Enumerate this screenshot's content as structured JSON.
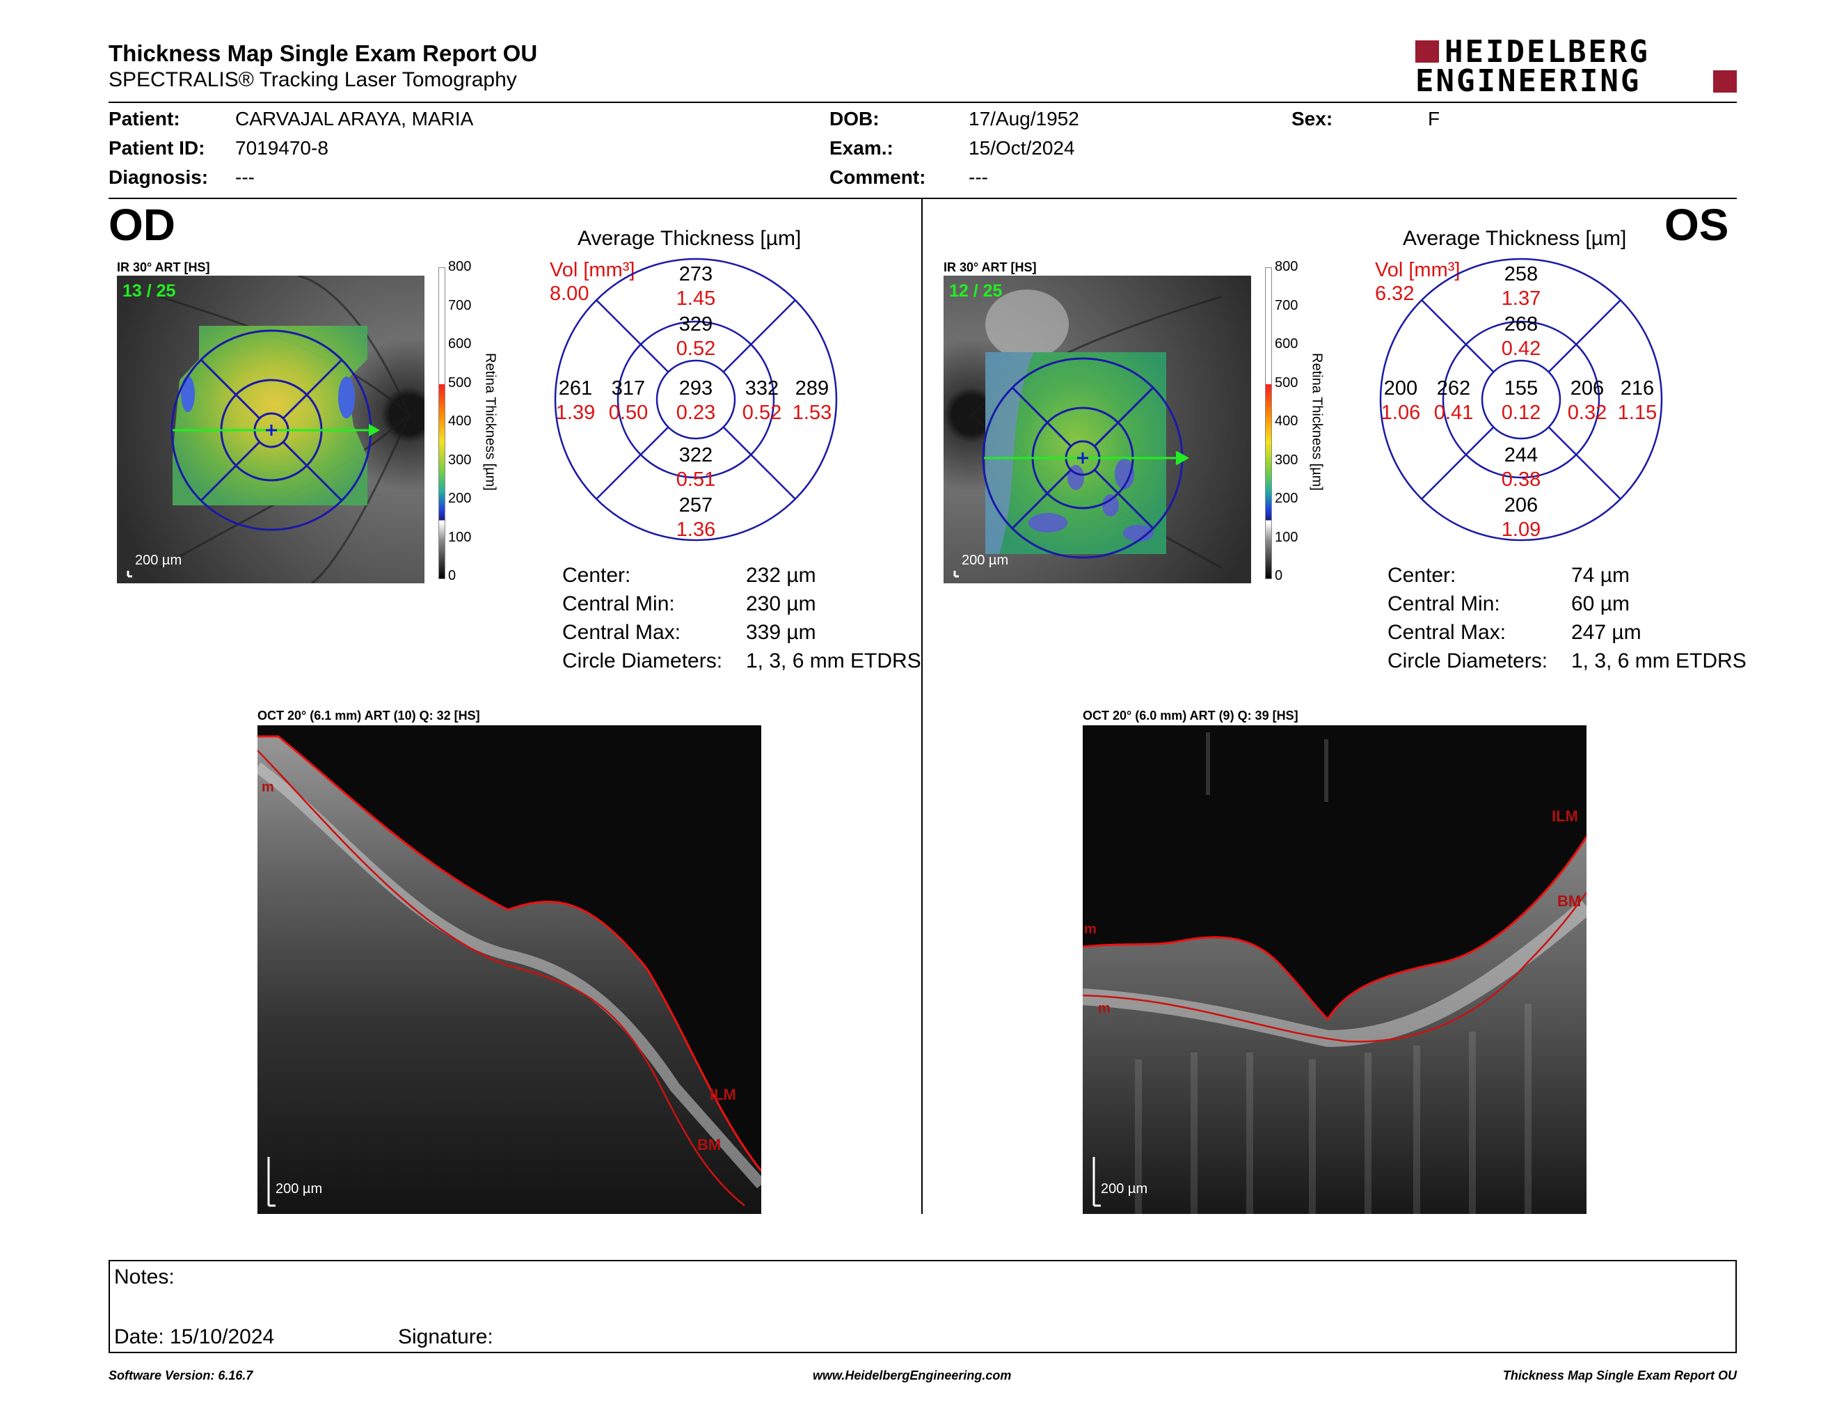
{
  "header": {
    "title": "Thickness Map Single Exam Report OU",
    "subtitle": "SPECTRALIS® Tracking Laser Tomography",
    "logo_line1": "HEIDELBERG",
    "logo_line2": "ENGINEERING"
  },
  "patient": {
    "patient_label": "Patient:",
    "patient_value": "CARVAJAL ARAYA, MARIA",
    "id_label": "Patient ID:",
    "id_value": "7019470-8",
    "diag_label": "Diagnosis:",
    "diag_value": "---",
    "dob_label": "DOB:",
    "dob_value": "17/Aug/1952",
    "exam_label": "Exam.:",
    "exam_value": "15/Oct/2024",
    "comment_label": "Comment:",
    "comment_value": "---",
    "sex_label": "Sex:",
    "sex_value": "F"
  },
  "scale": {
    "ticks": [
      "800",
      "700",
      "600",
      "500",
      "400",
      "300",
      "200",
      "100",
      "0"
    ],
    "axis_label": "Retina Thickness [µm]"
  },
  "od": {
    "eye": "OD",
    "ir_title": "IR 30° ART [HS]",
    "frame": "13 / 25",
    "scale_bar": "200 µm",
    "avg_title": "Average Thickness [µm]",
    "vol_label": "Vol [mm³]",
    "vol_value": "8.00",
    "etdrs": {
      "center": {
        "t": "293",
        "v": "0.23"
      },
      "inner_top": {
        "t": "329",
        "v": "0.52"
      },
      "inner_bottom": {
        "t": "322",
        "v": "0.51"
      },
      "inner_left": {
        "t": "317",
        "v": "0.50"
      },
      "inner_right": {
        "t": "332",
        "v": "0.52"
      },
      "outer_top": {
        "t": "273",
        "v": "1.45"
      },
      "outer_bottom": {
        "t": "257",
        "v": "1.36"
      },
      "outer_left": {
        "t": "261",
        "v": "1.39"
      },
      "outer_right": {
        "t": "289",
        "v": "1.53"
      }
    },
    "stats": {
      "center_label": "Center:",
      "center_value": "232 µm",
      "min_label": "Central Min:",
      "min_value": "230 µm",
      "max_label": "Central Max:",
      "max_value": "339 µm",
      "diam_label": "Circle Diameters:",
      "diam_value": "1, 3, 6 mm ETDRS"
    },
    "oct_title": "OCT 20° (6.1 mm) ART (10) Q: 32 [HS]",
    "oct_scale_bar": "200 µm",
    "layer_ilm": "ILM",
    "layer_bm": "BM",
    "layer_m": "m"
  },
  "os": {
    "eye": "OS",
    "ir_title": "IR 30° ART [HS]",
    "frame": "12 / 25",
    "scale_bar": "200 µm",
    "avg_title": "Average Thickness [µm]",
    "vol_label": "Vol [mm³]",
    "vol_value": "6.32",
    "etdrs": {
      "center": {
        "t": "155",
        "v": "0.12"
      },
      "inner_top": {
        "t": "268",
        "v": "0.42"
      },
      "inner_bottom": {
        "t": "244",
        "v": "0.38"
      },
      "inner_left": {
        "t": "262",
        "v": "0.41"
      },
      "inner_right": {
        "t": "206",
        "v": "0.32"
      },
      "outer_top": {
        "t": "258",
        "v": "1.37"
      },
      "outer_bottom": {
        "t": "206",
        "v": "1.09"
      },
      "outer_left": {
        "t": "200",
        "v": "1.06"
      },
      "outer_right": {
        "t": "216",
        "v": "1.15"
      }
    },
    "stats": {
      "center_label": "Center:",
      "center_value": "74 µm",
      "min_label": "Central Min:",
      "min_value": "60 µm",
      "max_label": "Central Max:",
      "max_value": "247 µm",
      "diam_label": "Circle Diameters:",
      "diam_value": "1, 3, 6 mm ETDRS"
    },
    "oct_title": "OCT 20° (6.0 mm) ART (9) Q: 39 [HS]",
    "oct_scale_bar": "200 µm",
    "layer_ilm": "ILM",
    "layer_bm": "BM",
    "layer_m1": "m",
    "layer_m2": "m"
  },
  "notes": {
    "notes_label": "Notes:",
    "date_label": "Date: 15/10/2024",
    "signature_label": "Signature:"
  },
  "footer": {
    "software": "Software Version: 6.16.7",
    "website": "www.HeidelbergEngineering.com",
    "report": "Thickness Map Single Exam Report OU"
  }
}
